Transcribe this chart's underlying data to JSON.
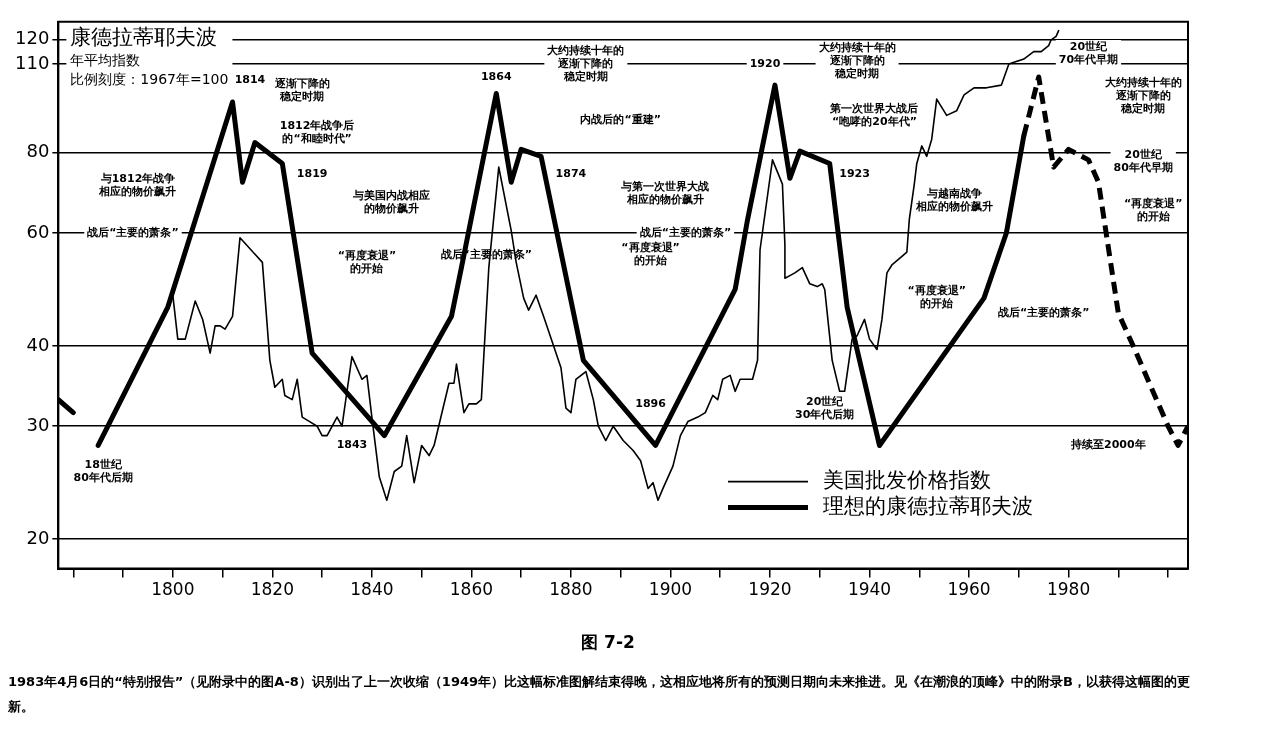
{
  "chart_data": {
    "type": "line",
    "title": "康德拉蒂耶夫波",
    "subtitle": "年平均指数比例刻度：1967年=100",
    "log": true,
    "grid": "y",
    "legend": "bottom right",
    "marker": "none",
    "xlim": [
      1777,
      2004
    ],
    "xticks": [
      {
        "value": 1780,
        "label": null
      },
      {
        "value": 1790,
        "label": null
      },
      1800,
      {
        "value": 1810,
        "label": null
      },
      1820,
      {
        "value": 1830,
        "label": null
      },
      1840,
      {
        "value": 1850,
        "label": null
      },
      1860,
      {
        "value": 1870,
        "label": null
      },
      1880,
      {
        "value": 1890,
        "label": null
      },
      1900,
      {
        "value": 1910,
        "label": null
      },
      1920,
      {
        "value": 1930,
        "label": null
      },
      1940,
      {
        "value": 1950,
        "label": null
      },
      1960,
      {
        "value": 1970,
        "label": null
      },
      1980,
      {
        "value": 1990,
        "label": null
      },
      {
        "value": 2000,
        "label": null
      }
    ],
    "ylim": [
      18,
      128
    ],
    "yticks": [
      20,
      30,
      40,
      60,
      80,
      110,
      120
    ],
    "series": [
      {
        "name": "美国批发价格指数",
        "color": "#000000",
        "line_style": "solid",
        "x": [
          1800,
          1801,
          1802.5,
          1804.5,
          1806,
          1807.5,
          1808.5,
          1809.5,
          1810.5,
          1812,
          1813.5,
          1818,
          1819.5,
          1820.5,
          1822,
          1822.5,
          1824,
          1825,
          1826,
          1827.5,
          1829,
          1830,
          1831,
          1833,
          1834,
          1836,
          1838,
          1839,
          1840,
          1841.5,
          1843,
          1844.5,
          1846,
          1847,
          1848.5,
          1850,
          1851.5,
          1852.5,
          1855.5,
          1856.5,
          1857,
          1858.5,
          1859.5,
          1861,
          1862,
          1863.5,
          1865.5,
          1868,
          1869,
          1870.5,
          1871.5,
          1873,
          1874.5,
          1878,
          1879,
          1880,
          1881,
          1883,
          1884.5,
          1885.5,
          1887,
          1888.5,
          1890.5,
          1892.5,
          1894,
          1895.5,
          1896.5,
          1897.5,
          1898.5,
          1900.5,
          1902,
          1903.5,
          1905.5,
          1907,
          1908.5,
          1909.5,
          1910.5,
          1912,
          1913,
          1914,
          1916.5,
          1917.5,
          1918,
          1920.5,
          1922.5,
          1923,
          1923,
          1924,
          1925,
          1926.5,
          1928,
          1929.5,
          1930.5,
          1931,
          1932.5,
          1934,
          1935,
          1936.5,
          1937.5,
          1939,
          1940,
          1941.5,
          1942.5,
          1943.5,
          1944.5,
          1947.5,
          1948,
          1949,
          1949.5,
          1950.5,
          1951.5,
          1952.5,
          1953.5,
          1955.5,
          1957.5,
          1959,
          1961,
          1963.5,
          1966.5,
          1968,
          1971,
          1973,
          1974.5,
          1976,
          1976.5,
          1977.5,
          1978
        ],
        "values": [
          48,
          41,
          41,
          47,
          44,
          39,
          43,
          43,
          42.5,
          44.5,
          59,
          54,
          38,
          34.5,
          35.5,
          33.5,
          33,
          35.5,
          31,
          30.5,
          30,
          29,
          29,
          31,
          30,
          38.5,
          35.5,
          36,
          31,
          25,
          23,
          25.5,
          26,
          29,
          24.5,
          28,
          27,
          28,
          35,
          35,
          37.5,
          31.5,
          32.5,
          32.5,
          33,
          53,
          76,
          60.5,
          54,
          47.5,
          45.5,
          48,
          44.5,
          37,
          32,
          31.5,
          35.5,
          36.5,
          33,
          30,
          28.5,
          30,
          28.5,
          27.5,
          26.5,
          24,
          24.5,
          23,
          24,
          26,
          29,
          30.5,
          31,
          31.5,
          33.5,
          33,
          35.5,
          36,
          34,
          35.5,
          35.5,
          38,
          56.5,
          78,
          71.5,
          57.5,
          51,
          51.5,
          52,
          53,
          50,
          49.5,
          50,
          49,
          38,
          34,
          34,
          41,
          41.5,
          44,
          41,
          39.5,
          44,
          52,
          53.5,
          56,
          63,
          71.5,
          77,
          82,
          79,
          84,
          97,
          91.5,
          93,
          98.5,
          101,
          101,
          102,
          110,
          112,
          115,
          115,
          117.5,
          120,
          121.5,
          124
        ]
      },
      {
        "name": "理想的康德拉蒂耶夫波",
        "color": "#000000",
        "line_style": "solid",
        "x": [
          1777,
          1780,
          1782,
          1785,
          1799,
          1812,
          1814,
          1816.5,
          1822,
          1828,
          1842.5,
          1856,
          1858,
          1865,
          1868,
          1870,
          1874,
          1882.5,
          1897,
          1913,
          1915.5,
          1921,
          1924,
          1926,
          1932,
          1935.5,
          1942,
          1963,
          1967.5,
          1971
        ],
        "values": [
          33,
          31.5,
          null,
          28,
          46,
          96,
          72,
          83,
          77,
          39,
          29,
          44.5,
          53,
          99,
          72,
          81,
          79,
          38,
          28,
          49,
          63,
          102,
          73,
          80.5,
          77,
          46,
          28,
          47.5,
          60,
          85
        ]
      },
      {
        "color": "#000000",
        "line_style": "dashed",
        "x": [
          1971,
          1974,
          1977,
          1980,
          1984,
          1986,
          1990,
          1993,
          2000,
          2002,
          2004
        ],
        "values": [
          85,
          105,
          76,
          81,
          78,
          72,
          45,
          40,
          30,
          28,
          30
        ]
      }
    ],
    "annotations": [
      {
        "text": "1814",
        "x": 1815.5,
        "y": 104
      },
      {
        "text": "1819",
        "x": 1828,
        "y": 74
      },
      {
        "text": "1843",
        "x": 1836,
        "y": 28
      },
      {
        "text": "1864",
        "x": 1865,
        "y": 105
      },
      {
        "text": "1874",
        "x": 1880,
        "y": 74
      },
      {
        "text": "1896",
        "x": 1896,
        "y": 32.5
      },
      {
        "text": "1920",
        "x": 1919,
        "y": 110
      },
      {
        "text": "1923",
        "x": 1937,
        "y": 74
      },
      "逐渐下降的稳定时期",
      "1812年战争后的“和睦时代”",
      "与1812年战争相应的物价飙升",
      "战后“主要的萧条”",
      "“再度衰退”的开始",
      "18世纪80年代后期",
      "与美国内战相应的物价飙升",
      "大约持续十年的逐渐下降的稳定时期",
      "内战后的“重建”",
      "战后“主要的萧条”",
      "“再度衰退”的开始",
      "与第一次世界大战相应的物价飙升",
      "大约持续十年的逐渐下降的稳定时期",
      "第一次世界大战后“咆哮的20年代”",
      "与越南战争相应的物价飙升",
      "战后“主要的萧条”",
      "“再度衰退”的开始",
      "20世纪30年代后期",
      "20世纪70年代早期",
      "大约持续十年的逐渐下降的稳定时期",
      "20世纪80年代早期",
      "“再度衰退”的开始",
      "战后“主要的萧条”",
      "持续至2000年",
      "图 7-2",
      "1983年4月6日的“特别报告”（见附录中的图A-8）识别出了上一次收缩（1949年）比这幅标准图解结束得晚，这相应地将所有的预测日期向未来推进。见《在潮浪的顶峰》中的附录B，以获得这幅图的更新。"
    ]
  }
}
